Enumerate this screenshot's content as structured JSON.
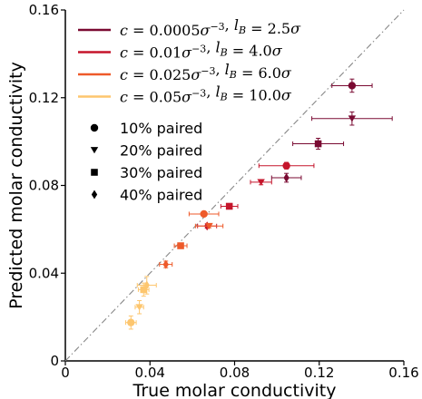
{
  "chart_data": {
    "type": "scatter",
    "xlabel": "True molar conductivity",
    "ylabel": "Predicted molar conductivity",
    "xlim": [
      0,
      0.16
    ],
    "ylim": [
      0,
      0.16
    ],
    "xticks": [
      "0",
      "0.04",
      "0.08",
      "0.12",
      "0.16"
    ],
    "yticks": [
      "0",
      "0.04",
      "0.08",
      "0.12",
      "0.16"
    ],
    "grid": false,
    "legend_position": "top-left",
    "reference_line": "y = x (dash-dot, gray)",
    "colors": {
      "c_0.0005": "#7a0a32",
      "c_0.01": "#c5152b",
      "c_0.025": "#ee5a2a",
      "c_0.05": "#fdc66e",
      "reference": "#888888"
    },
    "series": [
      {
        "name": "c = 0.0005σ⁻³, l_B = 2.5σ",
        "color": "#7a0a32",
        "points": [
          {
            "paired": "10%",
            "x": 0.1355,
            "y": 0.1255,
            "xerr": 0.0095,
            "yerr": 0.003
          },
          {
            "paired": "20%",
            "x": 0.1355,
            "y": 0.1105,
            "xerr": 0.019,
            "yerr": 0.003
          },
          {
            "paired": "30%",
            "x": 0.1195,
            "y": 0.099,
            "xerr": 0.012,
            "yerr": 0.0025
          },
          {
            "paired": "40%",
            "x": 0.1045,
            "y": 0.0835,
            "xerr": 0.007,
            "yerr": 0.002
          }
        ]
      },
      {
        "name": "c = 0.01σ⁻³, l_B = 4.0σ",
        "color": "#c5152b",
        "points": [
          {
            "paired": "10%",
            "x": 0.1045,
            "y": 0.089,
            "xerr": 0.013,
            "yerr": 0.0015
          },
          {
            "paired": "20%",
            "x": 0.0925,
            "y": 0.0815,
            "xerr": 0.005,
            "yerr": 0.0012
          },
          {
            "paired": "30%",
            "x": 0.0775,
            "y": 0.0705,
            "xerr": 0.004,
            "yerr": 0.0012
          },
          {
            "paired": "40%",
            "x": 0.067,
            "y": 0.0615,
            "xerr": 0.0045,
            "yerr": 0.001
          }
        ]
      },
      {
        "name": "c = 0.025σ⁻³, l_B = 6.0σ",
        "color": "#ee5a2a",
        "points": [
          {
            "paired": "10%",
            "x": 0.0655,
            "y": 0.067,
            "xerr": 0.007,
            "yerr": 0.0008
          },
          {
            "paired": "20%",
            "x": 0.068,
            "y": 0.0615,
            "xerr": 0.0065,
            "yerr": 0.0008
          },
          {
            "paired": "30%",
            "x": 0.0545,
            "y": 0.0525,
            "xerr": 0.003,
            "yerr": 0.001
          },
          {
            "paired": "40%",
            "x": 0.0475,
            "y": 0.044,
            "xerr": 0.003,
            "yerr": 0.0015
          }
        ]
      },
      {
        "name": "c = 0.05σ⁻³, l_B = 10.0σ",
        "color": "#fdc66e",
        "points": [
          {
            "paired": "10%",
            "x": 0.031,
            "y": 0.0175,
            "xerr": 0.0025,
            "yerr": 0.003
          },
          {
            "paired": "20%",
            "x": 0.035,
            "y": 0.0245,
            "xerr": 0.002,
            "yerr": 0.003
          },
          {
            "paired": "30%",
            "x": 0.037,
            "y": 0.0325,
            "xerr": 0.0025,
            "yerr": 0.003
          },
          {
            "paired": "40%",
            "x": 0.0385,
            "y": 0.0345,
            "xerr": 0.0045,
            "yerr": 0.004
          }
        ]
      }
    ],
    "legend": {
      "lines": [
        {
          "prefix": "c = ",
          "conc": "0.0005",
          "lb": "2.5",
          "color": "#7a0a32"
        },
        {
          "prefix": "c = ",
          "conc": "0.01",
          "lb": "4.0",
          "color": "#c5152b"
        },
        {
          "prefix": "c = ",
          "conc": "0.025",
          "lb": "6.0",
          "color": "#ee5a2a"
        },
        {
          "prefix": "c = ",
          "conc": "0.05",
          "lb": "10.0",
          "color": "#fdc66e"
        }
      ],
      "markers": [
        {
          "shape": "circle",
          "label": "10% paired"
        },
        {
          "shape": "triangle-down",
          "label": "20% paired"
        },
        {
          "shape": "square",
          "label": "30% paired"
        },
        {
          "shape": "diamond",
          "label": "40% paired"
        }
      ]
    }
  }
}
